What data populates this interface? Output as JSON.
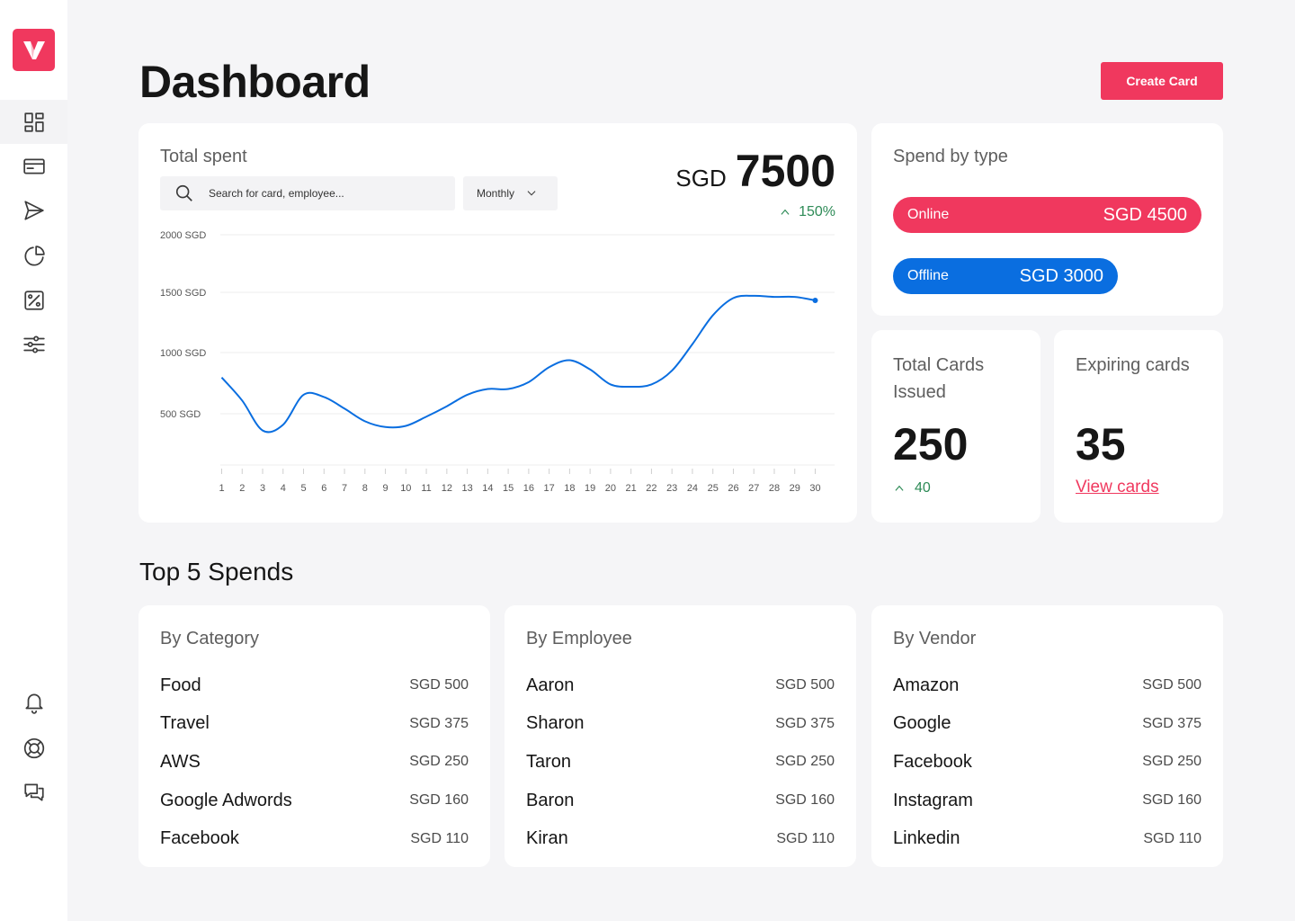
{
  "header": {
    "title": "Dashboard",
    "create_label": "Create Card"
  },
  "sidebar": {
    "icons": [
      "dashboard-icon",
      "card-icon",
      "send-icon",
      "pie-chart-icon",
      "percent-icon",
      "sliders-icon",
      "bell-icon",
      "support-icon",
      "chat-icon"
    ],
    "active": "dashboard-icon"
  },
  "total_spent": {
    "label": "Total spent",
    "search_placeholder": "Search for card, employee...",
    "period": "Monthly",
    "currency": "SGD",
    "amount": "7500",
    "growth": "150%"
  },
  "chart_data": {
    "type": "line",
    "x": [
      1,
      2,
      3,
      4,
      5,
      6,
      7,
      8,
      9,
      10,
      11,
      12,
      13,
      14,
      15,
      16,
      17,
      18,
      19,
      20,
      21,
      22,
      23,
      24,
      25,
      26,
      27,
      28,
      29,
      30
    ],
    "x_tick_labels": [
      "1",
      "2",
      "3",
      "4",
      "5",
      "6",
      "7",
      "8",
      "9",
      "10",
      "11",
      "12",
      "13",
      "14",
      "15",
      "16",
      "17",
      "18",
      "19",
      "20",
      "21",
      "22",
      "23",
      "24",
      "25",
      "26",
      "27",
      "28",
      "29",
      "30"
    ],
    "y_tick_labels": [
      "2000 SGD",
      "1500 SGD",
      "1000 SGD",
      "500 SGD"
    ],
    "y_ticks": [
      2000,
      1500,
      1000,
      500
    ],
    "ylim": [
      0,
      2000
    ],
    "values": [
      760,
      560,
      300,
      350,
      610,
      590,
      490,
      380,
      330,
      340,
      420,
      510,
      610,
      660,
      660,
      720,
      850,
      910,
      830,
      700,
      680,
      700,
      820,
      1050,
      1300,
      1450,
      1470,
      1460,
      1460,
      1430
    ],
    "color": "#0a6ee0"
  },
  "spend_by_type": {
    "label": "Spend by type",
    "online": {
      "name": "Online",
      "value": "SGD 4500",
      "color": "#f0385e"
    },
    "offline": {
      "name": "Offline",
      "value": "SGD 3000",
      "color": "#0a6ee0"
    }
  },
  "cards_issued": {
    "label": "Total Cards Issued",
    "value": "250",
    "growth": "40"
  },
  "expiring": {
    "label": "Expiring cards",
    "value": "35",
    "link": "View cards"
  },
  "top_spends": {
    "title": "Top 5 Spends",
    "by_category": {
      "title": "By Category",
      "rows": [
        {
          "name": "Food",
          "value": "SGD 500"
        },
        {
          "name": "Travel",
          "value": "SGD 375"
        },
        {
          "name": "AWS",
          "value": "SGD 250"
        },
        {
          "name": "Google Adwords",
          "value": "SGD 160"
        },
        {
          "name": "Facebook",
          "value": "SGD 110"
        }
      ]
    },
    "by_employee": {
      "title": "By Employee",
      "rows": [
        {
          "name": "Aaron",
          "value": "SGD 500"
        },
        {
          "name": "Sharon",
          "value": "SGD 375"
        },
        {
          "name": "Taron",
          "value": "SGD 250"
        },
        {
          "name": "Baron",
          "value": "SGD 160"
        },
        {
          "name": "Kiran",
          "value": "SGD 110"
        }
      ]
    },
    "by_vendor": {
      "title": "By Vendor",
      "rows": [
        {
          "name": "Amazon",
          "value": "SGD 500"
        },
        {
          "name": "Google",
          "value": "SGD 375"
        },
        {
          "name": "Facebook",
          "value": "SGD 250"
        },
        {
          "name": "Instagram",
          "value": "SGD 160"
        },
        {
          "name": "Linkedin",
          "value": "SGD 110"
        }
      ]
    }
  },
  "colors": {
    "accent": "#f0385e",
    "blue": "#0a6ee0",
    "positive": "#2e8b57",
    "background": "#f5f5f7"
  }
}
